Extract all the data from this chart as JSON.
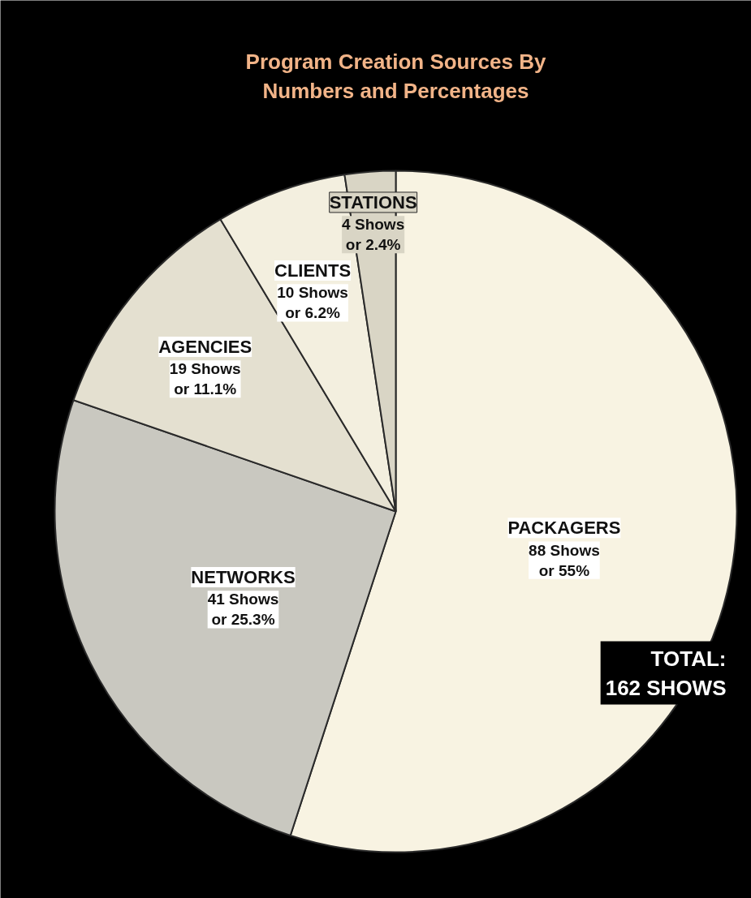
{
  "chart_data": {
    "type": "pie",
    "title": "Program Creation Sources By\nNumbers and Percentages",
    "categories": [
      "PACKAGERS",
      "NETWORKS",
      "AGENCIES",
      "CLIENTS",
      "STATIONS"
    ],
    "values": [
      55,
      25.3,
      11.1,
      6.2,
      2.4
    ],
    "colors": [
      "#f8f3e2",
      "#c9c8c0",
      "#e4e0d0",
      "#f3efdf",
      "#d9d5c5"
    ],
    "value_labels": [
      "88 Shows\nor 55%",
      "41 Shows\nor 25.3%",
      "19 Shows\nor 11.1%",
      "10 Shows\nor 6.2%",
      "4 Shows\nor 2.4%"
    ],
    "annotations": [
      "TOTAL:\n162 SHOWS"
    ]
  }
}
